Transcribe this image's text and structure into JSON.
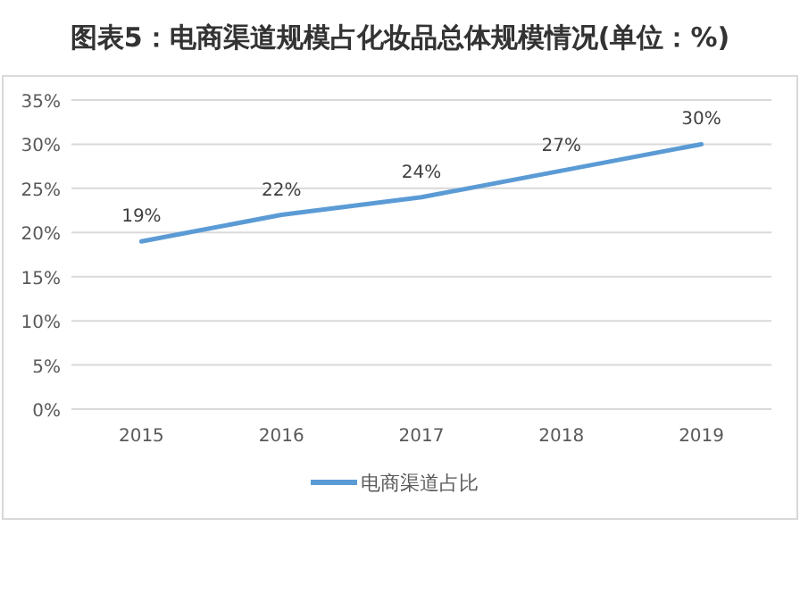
{
  "chart_data": {
    "type": "line",
    "title": "图表5：电商渠道规模占化妆品总体规模情况(单位：%)",
    "categories": [
      "2015",
      "2016",
      "2017",
      "2018",
      "2019"
    ],
    "series": [
      {
        "name": "电商渠道占比",
        "color": "#5b9bd5",
        "values": [
          19,
          22,
          24,
          27,
          30
        ],
        "value_labels": [
          "19%",
          "22%",
          "24%",
          "27%",
          "30%"
        ]
      }
    ],
    "ylim": [
      0,
      35
    ],
    "yticks": [
      {
        "value": 0,
        "label": "0%"
      },
      {
        "value": 5,
        "label": "5%"
      },
      {
        "value": 10,
        "label": "10%"
      },
      {
        "value": 15,
        "label": "15%"
      },
      {
        "value": 20,
        "label": "20%"
      },
      {
        "value": 25,
        "label": "25%"
      },
      {
        "value": 30,
        "label": "30%"
      },
      {
        "value": 35,
        "label": "35%"
      }
    ],
    "grid": "y",
    "legend": "bottom",
    "marker": "none",
    "line_style": "solid"
  }
}
